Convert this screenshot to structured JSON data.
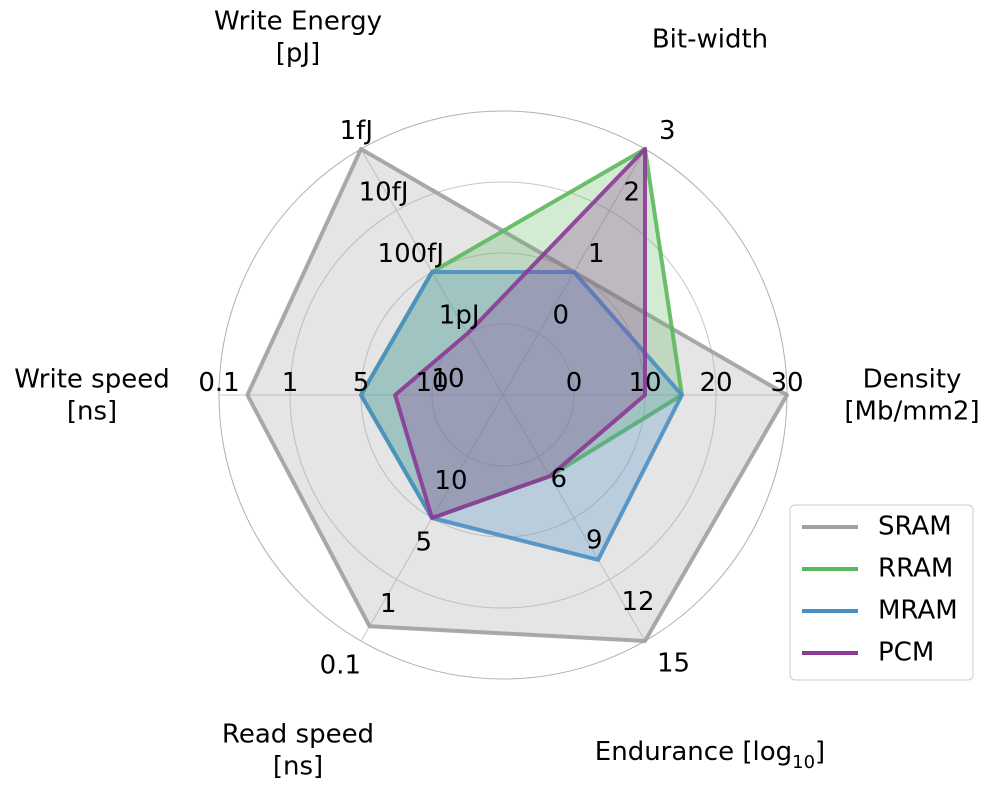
{
  "chart_data": {
    "type": "radar",
    "levels": [
      0,
      0.25,
      0.5,
      0.75,
      1.0
    ],
    "grid": true,
    "legend_position": "lower-right",
    "axes": [
      {
        "title": [
          "Density",
          "[Mb/mm2]"
        ],
        "ticks": [
          "0",
          "10",
          "20",
          "30"
        ]
      },
      {
        "title": [
          "Bit-width",
          ""
        ],
        "ticks": [
          "0",
          "1",
          "2",
          "3"
        ]
      },
      {
        "title": [
          "Write Energy",
          "[pJ]"
        ],
        "ticks": [
          "10",
          "1pJ",
          "100fJ",
          "10fJ",
          "1fJ"
        ]
      },
      {
        "title": [
          "Write speed",
          "[ns]"
        ],
        "ticks": [
          "10",
          "5",
          "1",
          "0.1"
        ]
      },
      {
        "title": [
          "Read speed",
          "[ns]"
        ],
        "ticks": [
          "10",
          "5",
          "1",
          "0.1"
        ]
      },
      {
        "title": [
          "Endurance [log",
          "10",
          "]"
        ],
        "ticks": [
          "6",
          "9",
          "12",
          "15"
        ]
      }
    ],
    "series": [
      {
        "name": "SRAM",
        "color": "#a0a0a0",
        "values": [
          1.0,
          0.5,
          1.0,
          0.9,
          0.94,
          1.0
        ]
      },
      {
        "name": "RRAM",
        "color": "#5cb85c",
        "values": [
          0.63,
          1.0,
          0.5,
          0.5,
          0.5,
          0.33
        ]
      },
      {
        "name": "MRAM",
        "color": "#4a8fc4",
        "values": [
          0.63,
          0.5,
          0.5,
          0.5,
          0.5,
          0.67
        ]
      },
      {
        "name": "PCM",
        "color": "#8b3a96",
        "values": [
          0.5,
          1.0,
          0.25,
          0.38,
          0.5,
          0.33
        ]
      }
    ]
  }
}
